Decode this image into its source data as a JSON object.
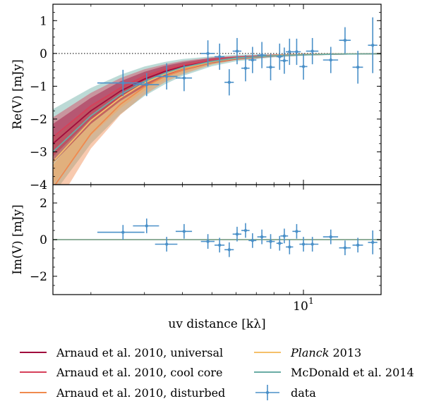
{
  "chart_data": [
    {
      "panel": "top",
      "type": "line",
      "ylabel": "Re(V) [mJy]",
      "ylim": [
        -4,
        1.5
      ],
      "yticks": [
        "1",
        "0",
        "−1",
        "−2",
        "−3",
        "−4"
      ],
      "ytick_values": [
        1,
        0,
        -1,
        -2,
        -3,
        -4
      ],
      "xlim": [
        1.5,
        18
      ],
      "xscale": "log",
      "zero_line": "dotted",
      "models": [
        {
          "name": "Arnaud et al. 2010, universal",
          "color": "#a00c3c",
          "x": [
            1.5,
            2,
            2.5,
            3,
            3.5,
            4,
            5,
            6,
            8,
            10,
            13,
            18
          ],
          "y": [
            -2.75,
            -1.75,
            -1.15,
            -0.78,
            -0.55,
            -0.4,
            -0.22,
            -0.14,
            -0.07,
            -0.04,
            -0.02,
            -0.01
          ],
          "band": [
            0.6,
            0.4,
            0.3,
            0.22,
            0.17,
            0.13,
            0.08,
            0.05,
            0.03,
            0.02,
            0.01,
            0.01
          ]
        },
        {
          "name": "Arnaud et al. 2010, cool core",
          "color": "#d6405a",
          "x": [
            1.5,
            2,
            2.5,
            3,
            3.5,
            4,
            5,
            6,
            8,
            10,
            13,
            18
          ],
          "y": [
            -2.55,
            -1.6,
            -1.05,
            -0.7,
            -0.5,
            -0.36,
            -0.2,
            -0.13,
            -0.06,
            -0.035,
            -0.02,
            -0.01
          ],
          "band": [
            0.6,
            0.4,
            0.3,
            0.22,
            0.17,
            0.13,
            0.08,
            0.05,
            0.03,
            0.02,
            0.01,
            0.01
          ]
        },
        {
          "name": "Arnaud et al. 2010, disturbed",
          "color": "#f08a4e",
          "x": [
            1.5,
            2,
            2.5,
            3,
            3.5,
            4,
            5,
            6,
            8,
            10,
            13,
            18
          ],
          "y": [
            -4.1,
            -2.45,
            -1.55,
            -1.02,
            -0.7,
            -0.5,
            -0.26,
            -0.15,
            -0.06,
            -0.03,
            -0.015,
            -0.005
          ],
          "band": [
            0.7,
            0.45,
            0.32,
            0.24,
            0.18,
            0.14,
            0.08,
            0.05,
            0.03,
            0.02,
            0.01,
            0.01
          ]
        },
        {
          "name": "Planck 2013",
          "color": "#f5c06a",
          "x": [
            1.5,
            2,
            2.5,
            3,
            3.5,
            4,
            5,
            6,
            8,
            10,
            13,
            18
          ],
          "y": [
            -3.3,
            -2.05,
            -1.35,
            -0.9,
            -0.63,
            -0.45,
            -0.25,
            -0.15,
            -0.07,
            -0.04,
            -0.02,
            -0.01
          ],
          "band": [
            0.7,
            0.45,
            0.32,
            0.24,
            0.18,
            0.14,
            0.08,
            0.05,
            0.03,
            0.02,
            0.01,
            0.01
          ]
        },
        {
          "name": "McDonald et al. 2014",
          "color": "#6aaca5",
          "x": [
            1.5,
            2,
            2.5,
            3,
            3.5,
            4,
            5,
            6,
            8,
            10,
            13,
            18
          ],
          "y": [
            -3.0,
            -1.9,
            -1.25,
            -0.85,
            -0.6,
            -0.43,
            -0.24,
            -0.14,
            -0.07,
            -0.04,
            -0.02,
            -0.01
          ],
          "band": [
            1.3,
            0.85,
            0.6,
            0.45,
            0.34,
            0.26,
            0.15,
            0.1,
            0.05,
            0.03,
            0.02,
            0.01
          ]
        }
      ],
      "data": {
        "name": "data",
        "color": "#4a90c8",
        "x": [
          2.55,
          3.05,
          3.55,
          4.05,
          4.85,
          5.3,
          5.7,
          6.05,
          6.45,
          6.8,
          7.3,
          7.8,
          8.35,
          8.65,
          9.0,
          9.5,
          10.0,
          10.7,
          12.3,
          13.7,
          15.1,
          16.9
        ],
        "xerr": [
          0.45,
          0.3,
          0.3,
          0.25,
          0.25,
          0.2,
          0.2,
          0.2,
          0.2,
          0.2,
          0.25,
          0.25,
          0.2,
          0.25,
          0.25,
          0.3,
          0.3,
          0.5,
          0.7,
          0.6,
          0.6,
          0.6
        ],
        "y": [
          -0.9,
          -0.95,
          -0.7,
          -0.75,
          0.0,
          -0.1,
          -0.88,
          0.07,
          -0.45,
          -0.2,
          -0.05,
          -0.42,
          -0.1,
          -0.22,
          0.05,
          0.05,
          -0.4,
          0.07,
          -0.2,
          0.4,
          -0.42,
          0.25
        ],
        "yerr": [
          0.4,
          0.35,
          0.4,
          0.4,
          0.4,
          0.4,
          0.4,
          0.4,
          0.4,
          0.4,
          0.4,
          0.4,
          0.4,
          0.4,
          0.4,
          0.4,
          0.4,
          0.4,
          0.4,
          0.4,
          0.5,
          0.85
        ]
      }
    },
    {
      "panel": "bottom",
      "type": "scatter",
      "ylabel": "Im(V) [mJy]",
      "ylim": [
        -3,
        3
      ],
      "yticks": [
        "2",
        "0",
        "−2"
      ],
      "ytick_values": [
        2,
        0,
        -2
      ],
      "xlim": [
        1.5,
        18
      ],
      "xscale": "log",
      "xlabel": "uv distance [kλ]",
      "xtick_label": "10",
      "xtick_exponent": "1",
      "xtick_value": 10,
      "model_line_color": "#8fae99",
      "data": {
        "name": "data",
        "color": "#4a90c8",
        "x": [
          2.55,
          3.05,
          3.55,
          4.05,
          4.85,
          5.3,
          5.7,
          6.05,
          6.45,
          6.8,
          7.3,
          7.8,
          8.35,
          8.65,
          9.0,
          9.5,
          10.0,
          10.7,
          12.3,
          13.7,
          15.1,
          16.9
        ],
        "xerr": [
          0.45,
          0.3,
          0.3,
          0.25,
          0.25,
          0.2,
          0.2,
          0.2,
          0.2,
          0.2,
          0.25,
          0.25,
          0.2,
          0.25,
          0.25,
          0.3,
          0.3,
          0.5,
          0.7,
          0.6,
          0.6,
          0.6
        ],
        "y": [
          0.4,
          0.75,
          -0.25,
          0.45,
          -0.1,
          -0.3,
          -0.55,
          0.3,
          0.5,
          -0.05,
          0.15,
          -0.1,
          -0.2,
          0.2,
          -0.4,
          0.45,
          -0.25,
          -0.25,
          0.15,
          -0.45,
          -0.3,
          -0.15
        ],
        "yerr": [
          0.4,
          0.4,
          0.4,
          0.4,
          0.4,
          0.4,
          0.4,
          0.4,
          0.4,
          0.4,
          0.4,
          0.4,
          0.4,
          0.4,
          0.4,
          0.4,
          0.4,
          0.4,
          0.4,
          0.4,
          0.4,
          0.65
        ]
      }
    }
  ],
  "legend": {
    "items": [
      {
        "prefix": "",
        "italic": "",
        "text": "Arnaud et al. 2010, universal",
        "color": "#a00c3c",
        "kind": "line"
      },
      {
        "prefix": "",
        "italic": "",
        "text": "Arnaud et al. 2010, cool core",
        "color": "#d6405a",
        "kind": "line"
      },
      {
        "prefix": "",
        "italic": "",
        "text": "Arnaud et al. 2010, disturbed",
        "color": "#f08a4e",
        "kind": "line"
      },
      {
        "prefix": "",
        "italic": "Planck",
        "text": " 2013",
        "color": "#f5c06a",
        "kind": "line"
      },
      {
        "prefix": "",
        "italic": "",
        "text": "McDonald et al. 2014",
        "color": "#6aaca5",
        "kind": "line"
      },
      {
        "prefix": "",
        "italic": "",
        "text": "data",
        "color": "#4a90c8",
        "kind": "errorbar"
      }
    ]
  }
}
